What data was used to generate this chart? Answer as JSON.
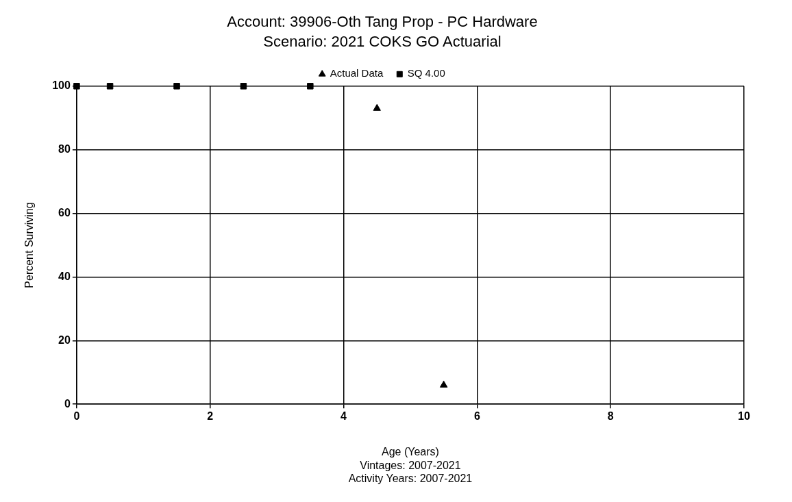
{
  "chart_data": {
    "type": "scatter",
    "title": "Account: 39906-Oth Tang Prop - PC Hardware",
    "subtitle": "Scenario: 2021 COKS GO Actuarial",
    "xlabel": "Age (Years)",
    "ylabel": "Percent Surviving",
    "annotations": [
      "Vintages: 2007-2021",
      "Activity Years: 2007-2021"
    ],
    "series": [
      {
        "name": "Actual Data",
        "color": "#000000",
        "marker": "triangle",
        "x": [
          4.5,
          5.5
        ],
        "values": [
          93,
          6
        ]
      },
      {
        "name": "SQ 4.00",
        "color": "#000000",
        "marker": "square",
        "x": [
          0,
          0.5,
          1.5,
          2.5,
          3.5
        ],
        "values": [
          100,
          100,
          100,
          100,
          100
        ]
      }
    ],
    "xlim": [
      0,
      10
    ],
    "xticks": [
      0,
      2,
      4,
      6,
      8,
      10
    ],
    "ylim": [
      0,
      100
    ],
    "yticks": [
      0,
      20,
      40,
      60,
      80,
      100
    ],
    "grid": true,
    "legend": "top"
  }
}
